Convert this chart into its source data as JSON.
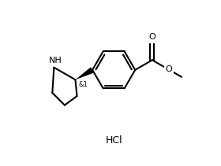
{
  "background_color": "#ffffff",
  "line_color": "#000000",
  "line_width": 1.5,
  "font_size_label": 8,
  "font_size_stereo": 6,
  "font_size_hcl": 9,
  "nh_label": "NH",
  "o_label": "O",
  "stereo_label": "&1",
  "hcl_label": "HCl",
  "bx": 5.2,
  "by": 5.8,
  "br": 1.3
}
